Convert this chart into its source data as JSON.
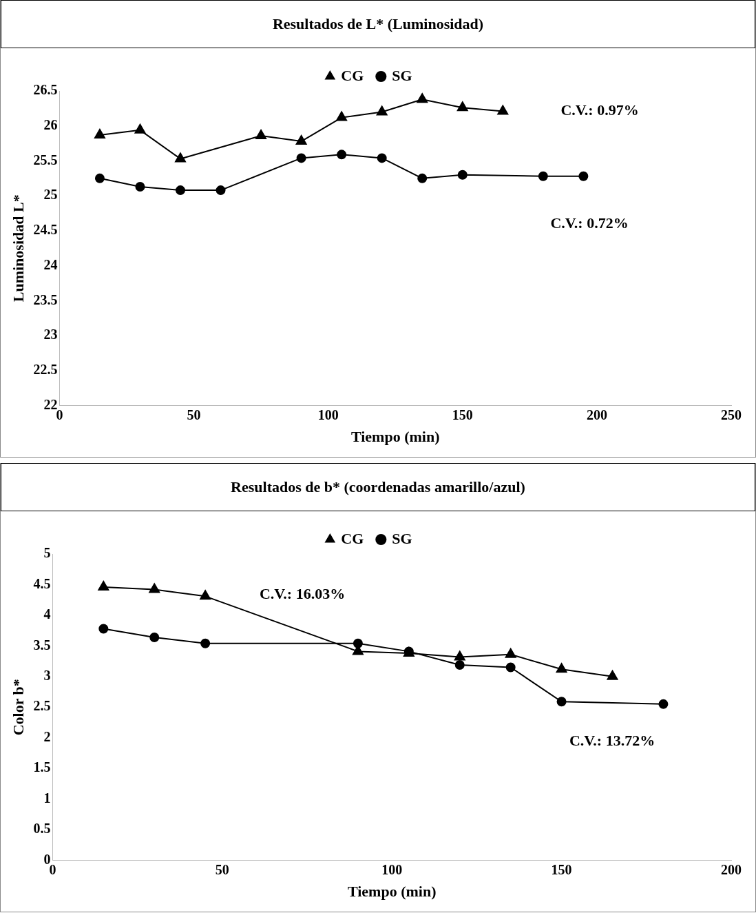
{
  "chart_data": [
    {
      "type": "line",
      "title": "Resultados de L* (Luminosidad)",
      "xlabel": "Tiempo (min)",
      "ylabel": "Luminosidad L*",
      "xlim": [
        0,
        250
      ],
      "xticks": [
        0,
        50,
        100,
        150,
        200,
        250
      ],
      "ylim": [
        22,
        26.5
      ],
      "yticks": [
        22,
        22.5,
        23,
        23.5,
        24,
        24.5,
        25,
        25.5,
        26,
        26.5
      ],
      "grid": false,
      "legend": "top",
      "line_style": "solid",
      "series": [
        {
          "name": "SG",
          "color": "#000000",
          "marker": "circle",
          "x": [
            15,
            30,
            45,
            60,
            90,
            105,
            120,
            135,
            150,
            180,
            195
          ],
          "values": [
            25.25,
            25.13,
            25.08,
            25.08,
            25.54,
            25.59,
            25.54,
            25.25,
            25.3,
            25.28,
            25.28
          ]
        },
        {
          "name": "CG",
          "color": "#000000",
          "marker": "triangle",
          "x": [
            15,
            30,
            45,
            75,
            90,
            105,
            120,
            135,
            150,
            165
          ],
          "values": [
            25.87,
            25.94,
            25.53,
            25.86,
            25.78,
            26.12,
            26.2,
            26.38,
            26.26,
            26.21
          ]
        }
      ],
      "annotations": [
        "C.V.: 0.97%",
        "C.V.: 0.72%"
      ]
    },
    {
      "type": "line",
      "title": "Resultados de b* (coordenadas amarillo/azul)",
      "xlabel": "Tiempo (min)",
      "ylabel": "Color b*",
      "xlim": [
        0,
        200
      ],
      "xticks": [
        0,
        50,
        100,
        150,
        200
      ],
      "ylim": [
        0,
        5
      ],
      "yticks": [
        0,
        0.5,
        1,
        1.5,
        2,
        2.5,
        3,
        3.5,
        4,
        4.5,
        5
      ],
      "grid": false,
      "legend": "top",
      "line_style": "solid",
      "series": [
        {
          "name": "SG",
          "color": "#000000",
          "marker": "circle",
          "x": [
            15,
            30,
            45,
            90,
            105,
            120,
            135,
            150,
            180
          ],
          "values": [
            3.78,
            3.64,
            3.54,
            3.54,
            3.41,
            3.19,
            3.15,
            2.59,
            2.55
          ]
        },
        {
          "name": "CG",
          "color": "#000000",
          "marker": "triangle",
          "x": [
            15,
            30,
            45,
            90,
            105,
            120,
            135,
            150,
            165
          ],
          "values": [
            4.46,
            4.42,
            4.31,
            3.41,
            3.38,
            3.32,
            3.36,
            3.12,
            3.0
          ]
        }
      ],
      "annotations": [
        "C.V.: 16.03%",
        "C.V.: 13.72%"
      ]
    }
  ]
}
